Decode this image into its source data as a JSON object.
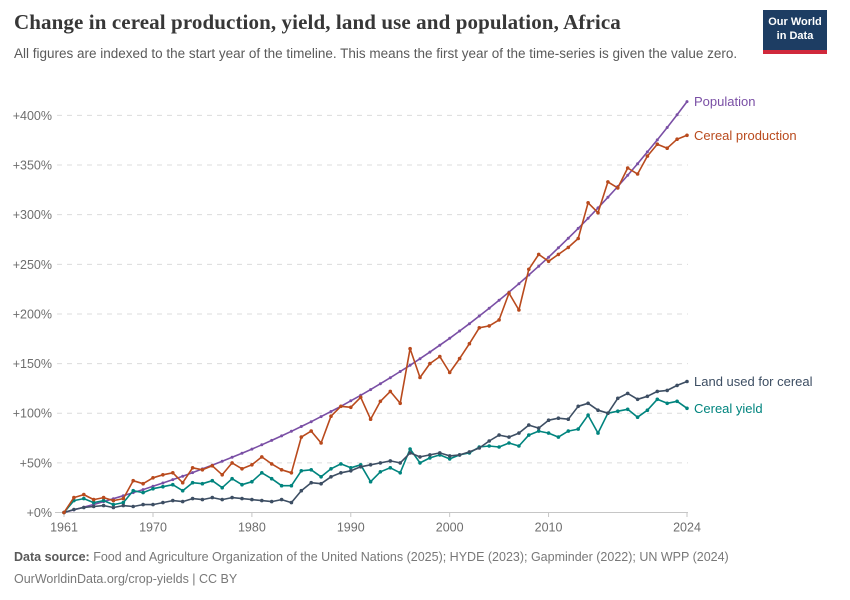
{
  "header": {
    "title": "Change in cereal production, yield, land use and population, Africa",
    "subtitle": "All figures are indexed to the start year of the timeline. This means the first year of the time-series is given the value zero.",
    "logo": {
      "line1": "Our World",
      "line2": "in Data",
      "bg_color": "#1d3d63",
      "accent_color": "#d0293c"
    }
  },
  "chart_data": {
    "type": "line",
    "title": "Change in cereal production, yield, land use and population, Africa",
    "xlabel": "",
    "ylabel": "",
    "xlim": [
      1961,
      2024
    ],
    "ylim": [
      0,
      418
    ],
    "grid": "horizontal-dashed",
    "legend_position": "right-edge-of-lines",
    "x_ticks": [
      1961,
      1970,
      1980,
      1990,
      2000,
      2010,
      2024
    ],
    "y_ticks": [
      0,
      50,
      100,
      150,
      200,
      250,
      300,
      350,
      400
    ],
    "y_tick_prefix": "+",
    "y_tick_suffix": "%",
    "x": [
      1961,
      1962,
      1963,
      1964,
      1965,
      1966,
      1967,
      1968,
      1969,
      1970,
      1971,
      1972,
      1973,
      1974,
      1975,
      1976,
      1977,
      1978,
      1979,
      1980,
      1981,
      1982,
      1983,
      1984,
      1985,
      1986,
      1987,
      1988,
      1989,
      1990,
      1991,
      1992,
      1993,
      1994,
      1995,
      1996,
      1997,
      1998,
      1999,
      2000,
      2001,
      2002,
      2003,
      2004,
      2005,
      2006,
      2007,
      2008,
      2009,
      2010,
      2011,
      2012,
      2013,
      2014,
      2015,
      2016,
      2017,
      2018,
      2019,
      2020,
      2021,
      2022,
      2023,
      2024
    ],
    "series": [
      {
        "name": "Population",
        "color": "#7a4fa5",
        "values": [
          0,
          2.6,
          5.3,
          8.1,
          11,
          13.9,
          16.9,
          20,
          23.1,
          26.4,
          29.7,
          33.1,
          36.6,
          40.2,
          43.9,
          47.7,
          51.6,
          55.6,
          59.7,
          63.9,
          68.2,
          72.6,
          77.2,
          81.8,
          86.6,
          91.5,
          96.6,
          101.7,
          107,
          112.5,
          118.1,
          123.8,
          129.7,
          135.8,
          142,
          148.3,
          154.9,
          161.6,
          168.5,
          175.5,
          182.8,
          190.2,
          197.9,
          205.7,
          213.7,
          222,
          230.5,
          239.2,
          248.1,
          257.2,
          266.6,
          276.3,
          286.2,
          296.3,
          306.8,
          317.5,
          328.4,
          339.7,
          351.3,
          363.2,
          375.3,
          387.8,
          400.7,
          413.9
        ]
      },
      {
        "name": "Cereal production",
        "color": "#b94a1d",
        "values": [
          0,
          15,
          18,
          13,
          15,
          12,
          14,
          32,
          29,
          35,
          38,
          40,
          30,
          45,
          43,
          47,
          38,
          50,
          44,
          48,
          56,
          49,
          43,
          40,
          76,
          82,
          70,
          97,
          107,
          106,
          116,
          94,
          112,
          122,
          110,
          165,
          136,
          150,
          157,
          141,
          155,
          170,
          186,
          188,
          194,
          221,
          204,
          245,
          260,
          253,
          260,
          267,
          276,
          312,
          302,
          333,
          327,
          347,
          341,
          359,
          371,
          367,
          376,
          380
        ]
      },
      {
        "name": "Land used for cereal",
        "color": "#3d4e63",
        "values": [
          0,
          3,
          5,
          6,
          7,
          5,
          7,
          6,
          8,
          8,
          10,
          12,
          11,
          14,
          13,
          15,
          13,
          15,
          14,
          13,
          12,
          11,
          13,
          10,
          22,
          30,
          29,
          36,
          40,
          42,
          46,
          48,
          50,
          52,
          50,
          60,
          56,
          58,
          60,
          57,
          58,
          61,
          65,
          72,
          78,
          76,
          80,
          88,
          85,
          93,
          95,
          94,
          107,
          110,
          103,
          100,
          115,
          120,
          114,
          117,
          122,
          123,
          128,
          132
        ]
      },
      {
        "name": "Cereal yield",
        "color": "#00847e",
        "values": [
          0,
          12,
          14,
          10,
          12,
          8,
          10,
          22,
          20,
          24,
          26,
          28,
          22,
          30,
          29,
          32,
          25,
          34,
          28,
          31,
          40,
          34,
          27,
          27,
          42,
          43,
          36,
          44,
          49,
          45,
          48,
          31,
          41,
          45,
          40,
          64,
          50,
          55,
          58,
          54,
          58,
          60,
          66,
          67,
          66,
          70,
          67,
          78,
          82,
          80,
          76,
          82,
          84,
          98,
          80,
          100,
          102,
          104,
          96,
          103,
          114,
          110,
          112,
          105
        ]
      }
    ]
  },
  "footer": {
    "source_label": "Data source:",
    "sources": "Food and Agriculture Organization of the United Nations (2025); HYDE (2023); Gapminder (2022); UN WPP (2024)",
    "attribution": "OurWorldinData.org/crop-yields | CC BY"
  }
}
